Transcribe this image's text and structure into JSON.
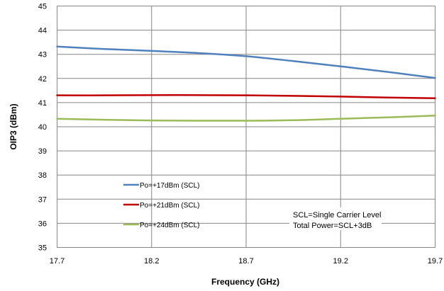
{
  "chart_data": {
    "type": "line",
    "title": "",
    "xlabel": "Frequency (GHz)",
    "ylabel": "OIP3 (dBm)",
    "xlim": [
      17.7,
      19.7
    ],
    "ylim": [
      35,
      45
    ],
    "x_ticks": [
      "17.7",
      "18.2",
      "18.7",
      "19.2",
      "19.7"
    ],
    "y_ticks": [
      "35",
      "36",
      "37",
      "38",
      "39",
      "40",
      "41",
      "42",
      "43",
      "44",
      "45"
    ],
    "grid": true,
    "legend_position": "lower-left",
    "x": [
      17.7,
      17.95,
      18.2,
      18.45,
      18.7,
      18.95,
      19.2,
      19.45,
      19.7
    ],
    "series": [
      {
        "name": "Po=+17dBm (SCL)",
        "color": "#4f81bd",
        "values": [
          43.32,
          43.22,
          43.14,
          43.05,
          42.92,
          42.72,
          42.5,
          42.27,
          42.02
        ]
      },
      {
        "name": "Po=+21dBm (SCL)",
        "color": "#c00000",
        "values": [
          41.3,
          41.3,
          41.31,
          41.31,
          41.3,
          41.28,
          41.25,
          41.21,
          41.18
        ]
      },
      {
        "name": "Po=+24dBm (SCL)",
        "color": "#9bbb59",
        "values": [
          40.33,
          40.29,
          40.26,
          40.25,
          40.25,
          40.27,
          40.33,
          40.39,
          40.46
        ]
      }
    ],
    "annotations": [
      "SCL=Single Carrier Level",
      "Total Power=SCL+3dB"
    ]
  }
}
